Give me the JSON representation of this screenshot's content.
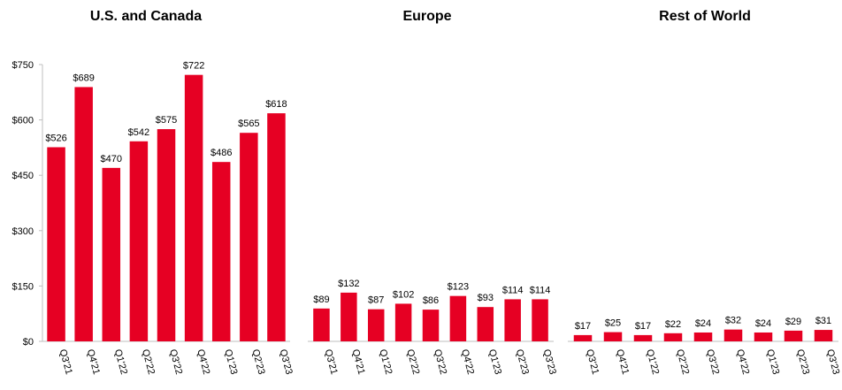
{
  "chart_data": [
    {
      "type": "bar",
      "title": "U.S. and Canada",
      "categories": [
        "Q3'21",
        "Q4'21",
        "Q1'22",
        "Q2'22",
        "Q3'22",
        "Q4'22",
        "Q1'23",
        "Q2'23",
        "Q3'23"
      ],
      "values": [
        526,
        689,
        470,
        542,
        575,
        722,
        486,
        565,
        618
      ],
      "value_labels": [
        "$526",
        "$689",
        "$470",
        "$542",
        "$575",
        "$722",
        "$486",
        "$565",
        "$618"
      ],
      "ylim": [
        0,
        750
      ],
      "yticks": [
        0,
        150,
        300,
        450,
        600,
        750
      ],
      "ytick_labels": [
        "$0",
        "$150",
        "$300",
        "$450",
        "$600",
        "$750"
      ],
      "xlabel": "",
      "ylabel": "",
      "bar_color": "#E60023"
    },
    {
      "type": "bar",
      "title": "Europe",
      "categories": [
        "Q3'21",
        "Q4'21",
        "Q1'22",
        "Q2'22",
        "Q3'22",
        "Q4'22",
        "Q1'23",
        "Q2'23",
        "Q3'23"
      ],
      "values": [
        89,
        132,
        87,
        102,
        86,
        123,
        93,
        114,
        114
      ],
      "value_labels": [
        "$89",
        "$132",
        "$87",
        "$102",
        "$86",
        "$123",
        "$93",
        "$114",
        "$114"
      ],
      "ylim": [
        0,
        750
      ],
      "xlabel": "",
      "ylabel": "",
      "bar_color": "#E60023"
    },
    {
      "type": "bar",
      "title": "Rest of World",
      "categories": [
        "Q3'21",
        "Q4'21",
        "Q1'22",
        "Q2'22",
        "Q3'22",
        "Q4'22",
        "Q1'23",
        "Q2'23",
        "Q3'23"
      ],
      "values": [
        17,
        25,
        17,
        22,
        24,
        32,
        24,
        29,
        31
      ],
      "value_labels": [
        "$17",
        "$25",
        "$17",
        "$22",
        "$24",
        "$32",
        "$24",
        "$29",
        "$31"
      ],
      "ylim": [
        0,
        750
      ],
      "xlabel": "",
      "ylabel": "",
      "bar_color": "#E60023"
    }
  ]
}
